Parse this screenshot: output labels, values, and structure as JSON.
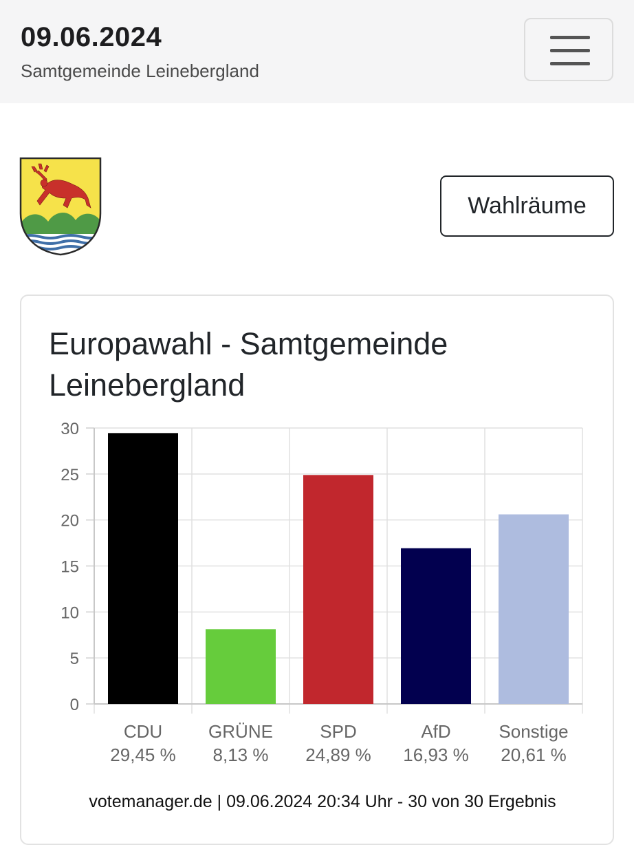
{
  "header": {
    "date": "09.06.2024",
    "subtitle": "Samtgemeinde Leinebergland",
    "menu_icon": "hamburger-menu-icon"
  },
  "crest": {
    "icon": "coat-of-arms-stag-crest",
    "colors": {
      "field": "#f6e24a",
      "stag": "#c8302b",
      "hills": "#4f9a46",
      "water": "#3f6fa8"
    }
  },
  "actions": {
    "wahlraeume_label": "Wahlräume"
  },
  "card": {
    "title": "Europawahl - Samtgemeinde Leinebergland"
  },
  "chart_data": {
    "type": "bar",
    "title": "Europawahl - Samtgemeinde Leinebergland",
    "categories": [
      "CDU",
      "GRÜNE",
      "SPD",
      "AfD",
      "Sonstige"
    ],
    "values": [
      29.45,
      8.13,
      24.89,
      16.93,
      20.61
    ],
    "value_labels": [
      "29,45 %",
      "8,13 %",
      "24,89 %",
      "16,93 %",
      "20,61 %"
    ],
    "colors": [
      "#000000",
      "#66cc3c",
      "#c1272d",
      "#02004f",
      "#aebcdf"
    ],
    "ylim": [
      0,
      30
    ],
    "yticks": [
      0,
      5,
      10,
      15,
      20,
      25,
      30
    ],
    "xlabel": "",
    "ylabel": "",
    "grid": true,
    "legend": "none"
  },
  "footer": {
    "source": "votemanager.de | 09.06.2024 20:34 Uhr - 30 von 30 Ergebnis"
  }
}
